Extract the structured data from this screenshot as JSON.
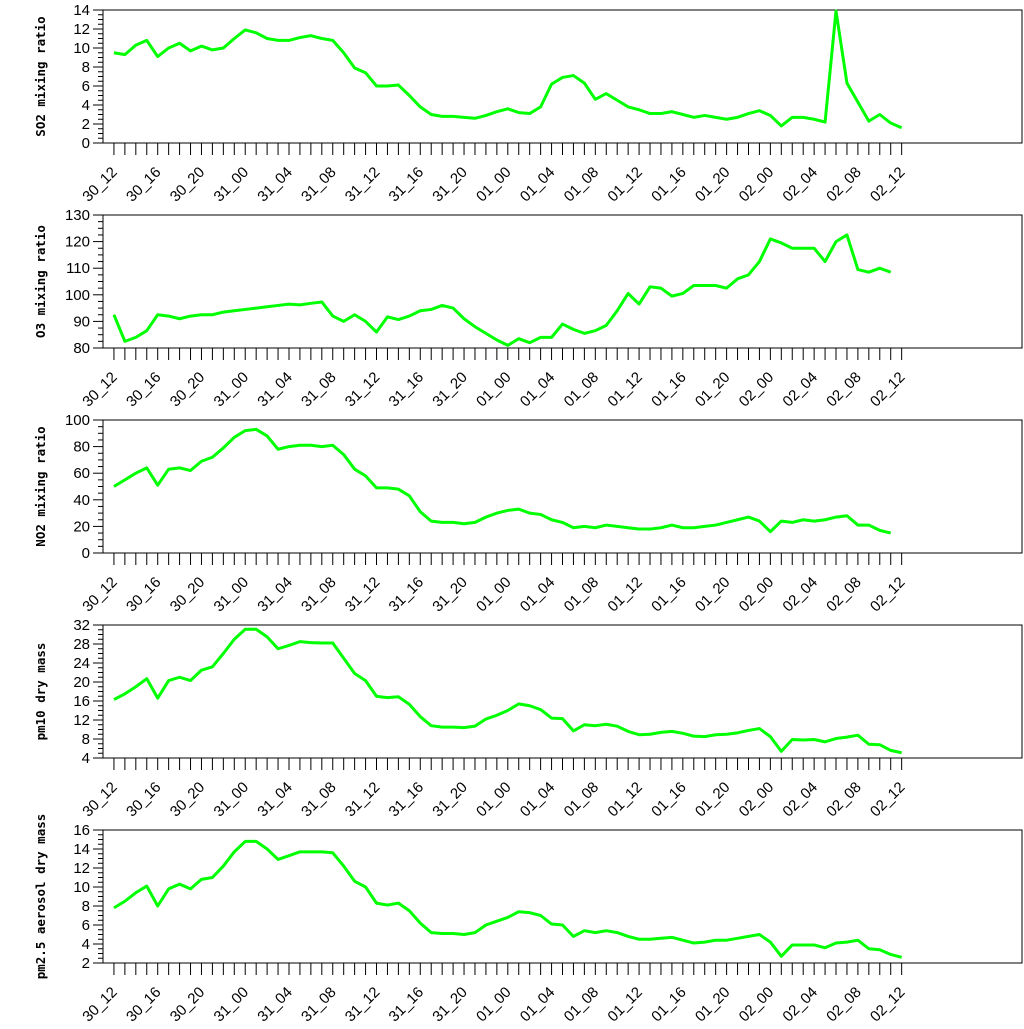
{
  "x_tick_labels": [
    "30_12",
    "30_16",
    "30_20",
    "31_00",
    "31_04",
    "31_08",
    "31_12",
    "31_16",
    "31_20",
    "01_00",
    "01_04",
    "01_08",
    "01_12",
    "01_16",
    "01_20",
    "02_00",
    "02_04",
    "02_08",
    "02_12"
  ],
  "line_color": "#00ff00",
  "chart_data": [
    {
      "type": "line",
      "ylabel": "SO2 mixing ratio",
      "ylim": [
        0,
        14
      ],
      "yticks": [
        0,
        2,
        4,
        6,
        8,
        10,
        12,
        14
      ],
      "xlim": [
        -1,
        83
      ],
      "x_tick_hours": [
        0,
        4,
        8,
        12,
        16,
        20,
        24,
        28,
        32,
        36,
        40,
        44,
        48,
        52,
        56,
        60,
        64,
        68,
        72
      ],
      "values": [
        9.5,
        9.3,
        10.3,
        10.8,
        9.1,
        10.0,
        10.5,
        9.7,
        10.2,
        9.8,
        10.0,
        11.0,
        11.9,
        11.6,
        11.0,
        10.8,
        10.8,
        11.1,
        11.3,
        11.0,
        10.8,
        9.5,
        7.9,
        7.4,
        6.0,
        6.0,
        6.1,
        5.0,
        3.8,
        3.0,
        2.8,
        2.8,
        2.7,
        2.6,
        2.9,
        3.3,
        3.6,
        3.2,
        3.1,
        3.8,
        6.2,
        6.9,
        7.1,
        6.3,
        4.6,
        5.2,
        4.5,
        3.8,
        3.5,
        3.1,
        3.1,
        3.3,
        3.0,
        2.7,
        2.9,
        2.7,
        2.5,
        2.7,
        3.1,
        3.4,
        2.9,
        1.8,
        2.7,
        2.7,
        2.5,
        2.2,
        13.9,
        6.3,
        4.3,
        2.3,
        3.0,
        2.1,
        1.6
      ],
      "grid": false
    },
    {
      "type": "line",
      "ylabel": "O3 mixing ratio",
      "ylim": [
        80,
        130
      ],
      "yticks": [
        80,
        90,
        100,
        110,
        120,
        130
      ],
      "xlim": [
        -1,
        83
      ],
      "x_tick_hours": [
        0,
        4,
        8,
        12,
        16,
        20,
        24,
        28,
        32,
        36,
        40,
        44,
        48,
        52,
        56,
        60,
        64,
        68,
        72
      ],
      "values": [
        92.5,
        82.5,
        84.0,
        86.5,
        92.5,
        92.0,
        91.0,
        92.0,
        92.5,
        92.5,
        93.5,
        94.0,
        94.5,
        95.0,
        95.5,
        96.0,
        96.5,
        96.2,
        96.8,
        97.3,
        92.0,
        90.0,
        92.5,
        90.0,
        86.0,
        91.7,
        90.7,
        92.0,
        94.0,
        94.5,
        96.0,
        95.0,
        91.0,
        88.0,
        85.5,
        83.0,
        81.0,
        83.5,
        82.0,
        84.0,
        84.0,
        89.0,
        87.0,
        85.5,
        86.5,
        88.5,
        94.0,
        100.5,
        96.5,
        103.0,
        102.5,
        99.5,
        100.5,
        103.5,
        103.5,
        103.5,
        102.5,
        106.0,
        107.5,
        112.5,
        121.0,
        119.5,
        117.5,
        117.5,
        117.5,
        112.5,
        120.0,
        122.5,
        109.5,
        108.5,
        110.0,
        108.5
      ],
      "grid": false
    },
    {
      "type": "line",
      "ylabel": "NO2 mixing ratio",
      "ylim": [
        0,
        100
      ],
      "yticks": [
        0,
        20,
        40,
        60,
        80,
        100
      ],
      "xlim": [
        -1,
        83
      ],
      "x_tick_hours": [
        0,
        4,
        8,
        12,
        16,
        20,
        24,
        28,
        32,
        36,
        40,
        44,
        48,
        52,
        56,
        60,
        64,
        68,
        72
      ],
      "values": [
        50,
        55,
        60,
        64,
        51,
        63,
        64,
        62,
        69,
        72,
        79,
        87,
        92,
        93,
        88,
        78,
        80,
        81,
        81,
        80,
        81,
        74,
        63,
        58,
        49,
        49,
        48,
        43,
        31,
        24,
        23,
        23,
        22,
        23,
        27,
        30,
        32,
        33,
        30,
        29,
        25,
        23,
        19,
        20,
        19,
        21,
        20,
        19,
        18,
        18,
        19,
        21,
        19,
        19,
        20,
        21,
        23,
        25,
        27,
        24,
        16,
        24,
        23,
        25,
        24,
        25,
        27,
        28,
        21,
        21,
        17,
        15
      ],
      "grid": false
    },
    {
      "type": "line",
      "ylabel": "pm10 dry mass",
      "ylim": [
        4,
        32
      ],
      "yticks": [
        4,
        8,
        12,
        16,
        20,
        24,
        28,
        32
      ],
      "xlim": [
        -1,
        83
      ],
      "x_tick_hours": [
        0,
        4,
        8,
        12,
        16,
        20,
        24,
        28,
        32,
        36,
        40,
        44,
        48,
        52,
        56,
        60,
        64,
        68,
        72
      ],
      "values": [
        16.3,
        17.5,
        19.0,
        20.7,
        16.6,
        20.3,
        21.0,
        20.3,
        22.5,
        23.2,
        26.0,
        29.0,
        31.1,
        31.1,
        29.5,
        27.0,
        27.7,
        28.5,
        28.3,
        28.2,
        28.2,
        25.0,
        21.8,
        20.3,
        17.0,
        16.7,
        16.9,
        15.3,
        12.7,
        10.8,
        10.5,
        10.5,
        10.4,
        10.7,
        12.2,
        13.0,
        14.0,
        15.4,
        15.0,
        14.2,
        12.4,
        12.3,
        9.7,
        11.0,
        10.8,
        11.1,
        10.7,
        9.6,
        8.9,
        9.0,
        9.4,
        9.6,
        9.2,
        8.6,
        8.5,
        8.9,
        9.0,
        9.3,
        9.8,
        10.2,
        8.5,
        5.4,
        7.9,
        7.8,
        7.9,
        7.4,
        8.1,
        8.4,
        8.8,
        6.9,
        6.8,
        5.6,
        5.1
      ],
      "grid": false
    },
    {
      "type": "line",
      "ylabel": "pm2.5 aerosol dry mass",
      "ylim": [
        2,
        16
      ],
      "yticks": [
        2,
        4,
        6,
        8,
        10,
        12,
        14,
        16
      ],
      "xlim": [
        -1,
        83
      ],
      "x_tick_hours": [
        0,
        4,
        8,
        12,
        16,
        20,
        24,
        28,
        32,
        36,
        40,
        44,
        48,
        52,
        56,
        60,
        64,
        68,
        72
      ],
      "values": [
        7.8,
        8.5,
        9.4,
        10.1,
        8.0,
        9.8,
        10.3,
        9.8,
        10.8,
        11.0,
        12.2,
        13.7,
        14.8,
        14.8,
        14.0,
        12.9,
        13.3,
        13.7,
        13.7,
        13.7,
        13.6,
        12.2,
        10.6,
        10.0,
        8.3,
        8.1,
        8.3,
        7.5,
        6.2,
        5.2,
        5.1,
        5.1,
        5.0,
        5.2,
        6.0,
        6.4,
        6.8,
        7.4,
        7.3,
        7.0,
        6.1,
        6.0,
        4.8,
        5.4,
        5.2,
        5.4,
        5.2,
        4.8,
        4.5,
        4.5,
        4.6,
        4.7,
        4.4,
        4.1,
        4.2,
        4.4,
        4.4,
        4.6,
        4.8,
        5.0,
        4.2,
        2.7,
        3.9,
        3.9,
        3.9,
        3.6,
        4.1,
        4.2,
        4.4,
        3.5,
        3.4,
        2.9,
        2.6
      ],
      "grid": false
    }
  ]
}
